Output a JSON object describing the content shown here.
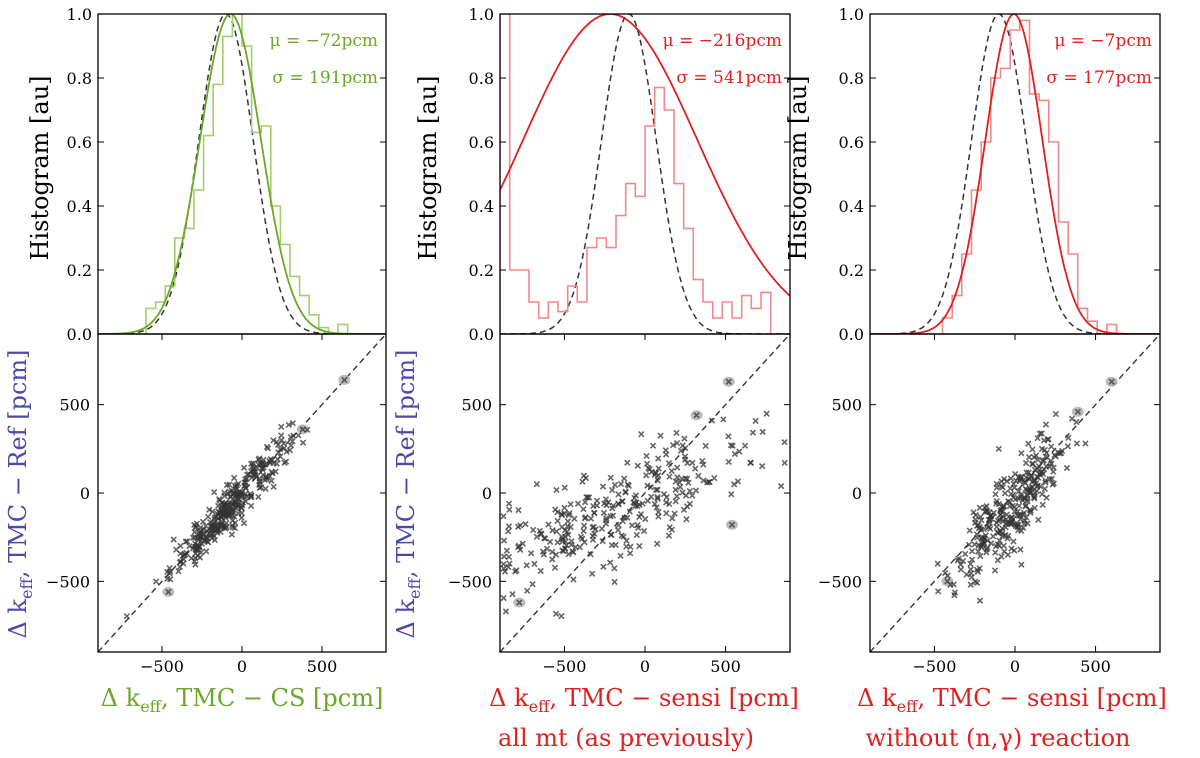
{
  "colors": {
    "green": "#6aa82a",
    "green_light": "#9fd06a",
    "red": "#e02020",
    "red_light": "#f08a8a",
    "blue_label": "#4a4aa8",
    "marker": "#333333",
    "halo": "#b0b0b0",
    "ref_dashed": "#333333"
  },
  "common": {
    "hist_ylabel": "Histogram [au]",
    "scatter_ylabel_delta": "Δ k",
    "scatter_ylabel_sub": "eff",
    "scatter_ylabel_rest": ",  TMC − Ref [pcm]",
    "hist_yticks": [
      "0.0",
      "0.2",
      "0.4",
      "0.6",
      "0.8",
      "1.0"
    ],
    "scatter_ticks": [
      "−500",
      "0",
      "500"
    ]
  },
  "chart_data": [
    {
      "type": "histogram",
      "panel": "top-left",
      "series_color": "green",
      "xlim": [
        -900,
        900
      ],
      "ylim": [
        0,
        1.0
      ],
      "bin_edges": [
        -600,
        -540,
        -480,
        -420,
        -360,
        -300,
        -240,
        -180,
        -120,
        -60,
        0,
        60,
        120,
        180,
        240,
        300,
        360,
        420,
        480,
        540,
        600,
        660
      ],
      "hist_values": [
        0.08,
        0.1,
        0.15,
        0.3,
        0.33,
        0.45,
        0.62,
        0.78,
        0.93,
        1.0,
        0.9,
        0.63,
        0.65,
        0.4,
        0.28,
        0.18,
        0.12,
        0.06,
        0.02,
        0.0,
        0.03
      ],
      "gaussian_fit": {
        "mu": -72,
        "sigma": 191
      },
      "reference_gaussian": {
        "mu": -100,
        "sigma": 170,
        "style": "dashed"
      },
      "annotations": [
        "μ = −72pcm",
        "σ = 191pcm"
      ],
      "annotation_position": "top-right"
    },
    {
      "type": "histogram",
      "panel": "top-middle",
      "series_color": "red",
      "xlim": [
        -900,
        900
      ],
      "ylim": [
        0,
        1.0
      ],
      "bin_edges": [
        -900,
        -840,
        -780,
        -720,
        -660,
        -600,
        -540,
        -480,
        -420,
        -360,
        -300,
        -240,
        -180,
        -120,
        -60,
        0,
        60,
        120,
        180,
        240,
        300,
        360,
        420,
        480,
        540,
        600,
        660,
        720,
        780
      ],
      "hist_values": [
        1.0,
        0.2,
        0.2,
        0.1,
        0.05,
        0.1,
        0.07,
        0.15,
        0.1,
        0.27,
        0.3,
        0.27,
        0.37,
        0.47,
        0.43,
        0.65,
        0.77,
        0.7,
        0.47,
        0.33,
        0.17,
        0.1,
        0.05,
        0.1,
        0.05,
        0.12,
        0.08,
        0.13
      ],
      "gaussian_fit": {
        "mu": -216,
        "sigma": 541
      },
      "reference_gaussian": {
        "mu": -100,
        "sigma": 170,
        "style": "dashed"
      },
      "annotations": [
        "μ = −216pcm",
        "σ = 541pcm"
      ],
      "annotation_position": "top-right"
    },
    {
      "type": "histogram",
      "panel": "top-right",
      "series_color": "red",
      "xlim": [
        -900,
        900
      ],
      "ylim": [
        0,
        1.0
      ],
      "bin_edges": [
        -450,
        -390,
        -330,
        -270,
        -210,
        -150,
        -90,
        -30,
        30,
        90,
        150,
        210,
        270,
        330,
        390,
        450,
        510,
        570,
        630
      ],
      "hist_values": [
        0.05,
        0.12,
        0.25,
        0.45,
        0.6,
        0.8,
        0.83,
        0.95,
        0.98,
        0.75,
        0.73,
        0.6,
        0.35,
        0.25,
        0.08,
        0.04,
        0.0,
        0.03
      ],
      "gaussian_fit": {
        "mu": -7,
        "sigma": 177
      },
      "reference_gaussian": {
        "mu": -100,
        "sigma": 170,
        "style": "dashed"
      },
      "annotations": [
        "μ = −7pcm",
        "σ = 177pcm"
      ],
      "annotation_position": "top-right"
    },
    {
      "type": "scatter",
      "panel": "bottom-left",
      "xlim": [
        -900,
        900
      ],
      "ylim": [
        -900,
        900
      ],
      "xticks": [
        -500,
        0,
        500
      ],
      "yticks": [
        -500,
        0,
        500
      ],
      "xlabel_delta": "Δ k",
      "xlabel_sub": "eff",
      "xlabel_rest": ",  TMC − CS [pcm]",
      "xlabel_color": "green",
      "diagonal": "y = x, dashed",
      "n_points": 320,
      "relation": {
        "slope": 1.0,
        "intercept": 0,
        "scatter_sd": 60,
        "x_mu": -72,
        "x_sd": 185
      },
      "highlighted": [
        {
          "x": 640,
          "y": 640
        }
      ],
      "outliers": [
        {
          "x": -460,
          "y": -560
        },
        {
          "x": 380,
          "y": 360
        }
      ]
    },
    {
      "type": "scatter",
      "panel": "bottom-middle",
      "xlim": [
        -900,
        900
      ],
      "ylim": [
        -900,
        900
      ],
      "xticks": [
        -500,
        0,
        500
      ],
      "yticks": [
        -500,
        0,
        500
      ],
      "xlabel_delta": "Δ k",
      "xlabel_sub": "eff",
      "xlabel_rest": ",  TMC − sensi [pcm]",
      "xlabel_color": "red",
      "subtitle": "all mt (as previously)",
      "diagonal": "y = x, dashed",
      "n_points": 300,
      "relation": {
        "slope": 0.38,
        "intercept": -40,
        "scatter_sd": 140,
        "x_mu": -150,
        "x_sd": 430
      },
      "highlighted": [
        {
          "x": 520,
          "y": 630
        }
      ],
      "outliers": [
        {
          "x": -780,
          "y": -620
        },
        {
          "x": 540,
          "y": -180
        },
        {
          "x": 320,
          "y": 440
        }
      ]
    },
    {
      "type": "scatter",
      "panel": "bottom-right",
      "xlim": [
        -900,
        900
      ],
      "ylim": [
        -900,
        900
      ],
      "xticks": [
        -500,
        0,
        500
      ],
      "yticks": [
        -500,
        0,
        500
      ],
      "xlabel_delta": "Δ k",
      "xlabel_sub": "eff",
      "xlabel_rest": ",  TMC − sensi [pcm]",
      "xlabel_color": "red",
      "subtitle": "without (n,γ) reaction",
      "diagonal": "y = x, dashed",
      "n_points": 300,
      "relation": {
        "slope": 1.05,
        "intercept": -60,
        "scatter_sd": 120,
        "x_mu": -7,
        "x_sd": 175
      },
      "highlighted": [
        {
          "x": 600,
          "y": 630
        }
      ],
      "outliers": [
        {
          "x": 390,
          "y": 460
        },
        {
          "x": -420,
          "y": -500
        }
      ]
    }
  ]
}
